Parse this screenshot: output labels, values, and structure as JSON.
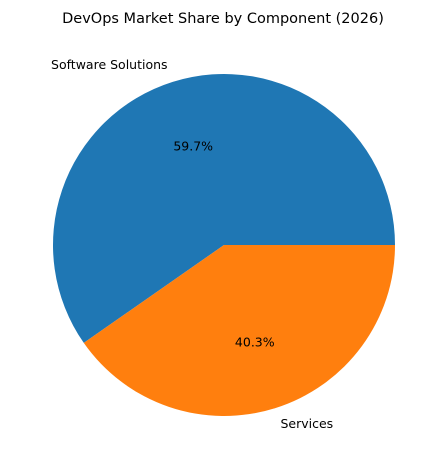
{
  "chart_data": {
    "type": "pie",
    "title": "DevOps Market Share by Component (2026)",
    "slices": [
      {
        "label": "Software Solutions",
        "value": 59.7,
        "value_label": "59.7%",
        "color": "#1f77b4"
      },
      {
        "label": "Services",
        "value": 40.3,
        "value_label": "40.3%",
        "color": "#ff7f0e"
      }
    ],
    "start_angle_deg": 0,
    "direction": "counterclockwise",
    "legend": "none"
  }
}
